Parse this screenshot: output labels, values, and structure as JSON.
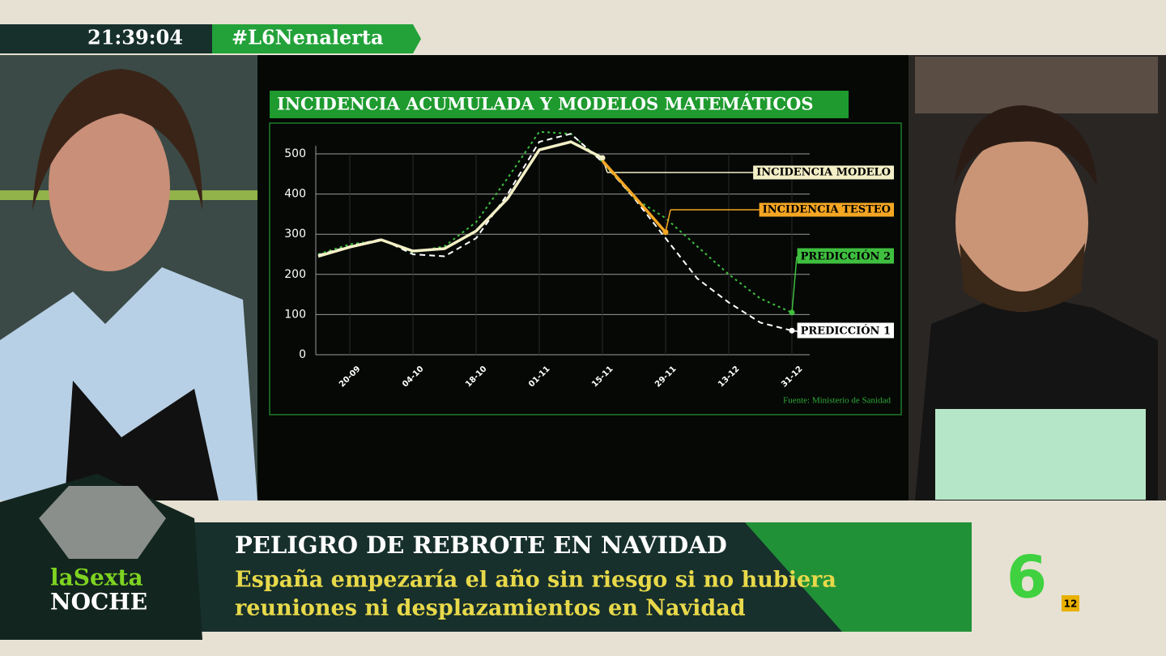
{
  "overlay": {
    "clock": "21:39:04",
    "hashtag": "#L6Nenalerta",
    "headline": "PELIGRO DE REBROTE EN NAVIDAD",
    "subline_1": "España empezaría el año sin riesgo si no hubiera",
    "subline_2": "reuniones ni desplazamientos en Navidad",
    "show_1": "laSexta",
    "show_2": "NOCHE",
    "channel": "6",
    "rating": "12"
  },
  "chart_data": {
    "type": "line",
    "title": "INCIDENCIA ACUMULADA Y MODELOS MATEMÁTICOS",
    "source": "Fuente: Ministerio de Sanidad",
    "categories": [
      null,
      "20-09",
      null,
      "04-10",
      null,
      "18-10",
      null,
      "01-11",
      null,
      "15-11",
      null,
      "29-11",
      null,
      "13-12",
      null,
      "31-12"
    ],
    "ylim": [
      0,
      500
    ],
    "yticks": [
      0,
      100,
      200,
      300,
      400,
      500
    ],
    "grid": true,
    "series": [
      {
        "name": "PREDICCIÓN 2",
        "color": "#3fbf3f",
        "dash": "dotted",
        "values": [
          250,
          275,
          285,
          255,
          270,
          330,
          440,
          555,
          550,
          480,
          390,
          340,
          270,
          200,
          140,
          105
        ]
      },
      {
        "name": "PREDICCIÓN 1",
        "color": "#ffffff",
        "dash": "dashed",
        "values": [
          248,
          270,
          288,
          250,
          245,
          290,
          400,
          530,
          550,
          480,
          390,
          290,
          190,
          130,
          80,
          60
        ]
      },
      {
        "name": "INCIDENCIA MODELO",
        "color": "#f3efc6",
        "dash": "solid",
        "values": [
          245,
          268,
          286,
          258,
          264,
          308,
          389,
          510,
          530,
          490,
          null,
          null,
          null,
          null,
          null,
          null
        ]
      },
      {
        "name": "INCIDENCIA TESTEO",
        "color": "#f5a623",
        "dash": "solid",
        "values": [
          null,
          null,
          null,
          null,
          null,
          null,
          null,
          null,
          null,
          483,
          395,
          305,
          null,
          null,
          null,
          null
        ]
      }
    ]
  }
}
